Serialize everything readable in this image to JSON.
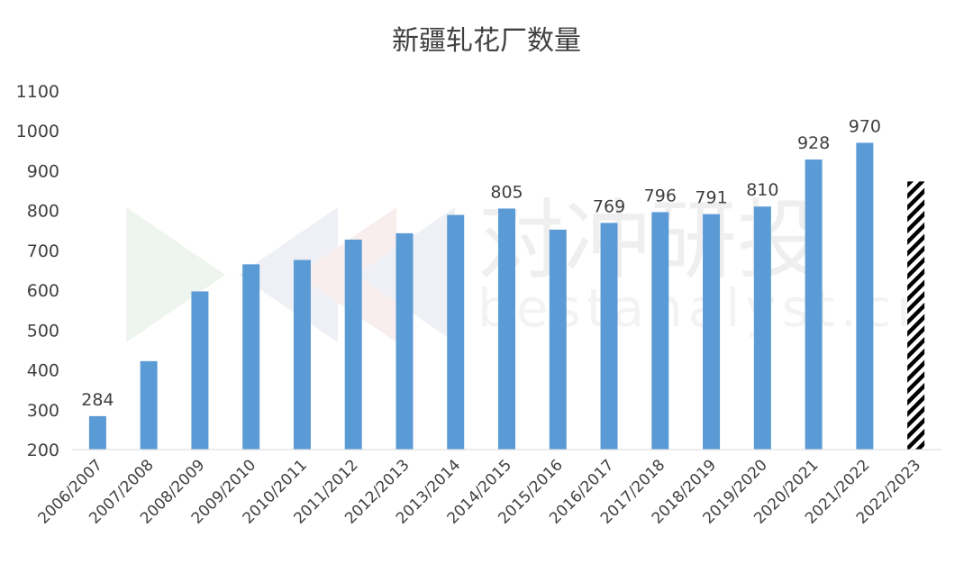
{
  "chart_data": {
    "type": "bar",
    "title": "新疆轧花厂数量",
    "xlabel": "",
    "ylabel": "",
    "ylim": [
      200,
      1100
    ],
    "yticks": [
      200,
      300,
      400,
      500,
      600,
      700,
      800,
      900,
      1000,
      1100
    ],
    "grid": false,
    "legend": "none",
    "categories": [
      "2006/2007",
      "2007/2008",
      "2008/2009",
      "2009/2010",
      "2010/2011",
      "2011/2012",
      "2012/2013",
      "2013/2014",
      "2014/2015",
      "2015/2016",
      "2016/2017",
      "2017/2018",
      "2018/2019",
      "2019/2020",
      "2020/2021",
      "2021/2022",
      "2022/2023"
    ],
    "values": [
      284,
      422,
      597,
      665,
      676,
      727,
      743,
      789,
      805,
      752,
      769,
      796,
      791,
      810,
      928,
      970,
      873
    ],
    "data_labels": [
      "284",
      "",
      "",
      "",
      "",
      "",
      "",
      "",
      "805",
      "",
      "769",
      "796",
      "791",
      "810",
      "928",
      "970",
      ""
    ],
    "bar_color": "#5b9bd5",
    "hatched_categories": [
      "2022/2023"
    ],
    "hatch_color": "#000000"
  },
  "watermark": {
    "text": "对冲研投",
    "subtext": "bestanalyst.cn"
  }
}
